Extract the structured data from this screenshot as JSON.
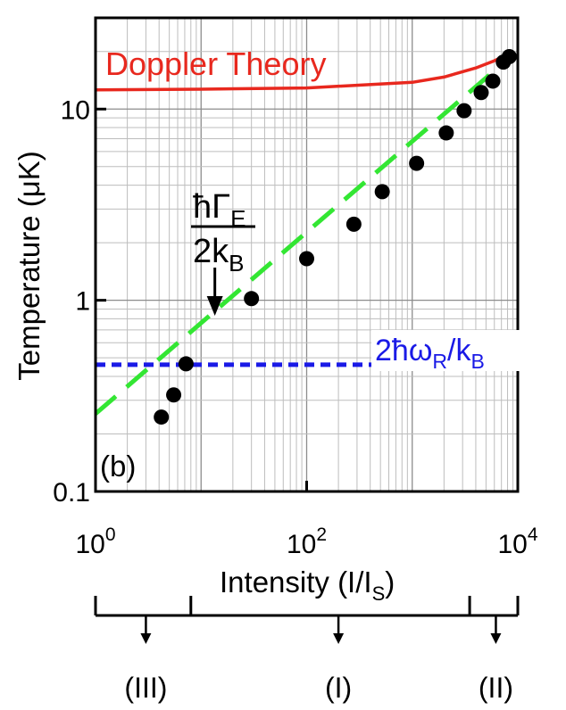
{
  "chart_data": {
    "type": "scatter",
    "title": "",
    "panel_label": "(b)",
    "xlabel": {
      "main": "Intensity (I/I",
      "sub": "S",
      "close": ")"
    },
    "ylabel": "Temperature (μK)",
    "x_scale": "log",
    "y_scale": "log",
    "xlim": [
      1,
      10000
    ],
    "ylim": [
      0.1,
      30
    ],
    "grid": true,
    "x_ticks": [
      {
        "value": 1,
        "base": "10",
        "exp": "0"
      },
      {
        "value": 100,
        "base": "10",
        "exp": "2"
      },
      {
        "value": 10000,
        "base": "10",
        "exp": "4"
      }
    ],
    "y_ticks": [
      {
        "value": 0.1,
        "label": "0.1"
      },
      {
        "value": 1,
        "label": "1"
      },
      {
        "value": 10,
        "label": "10"
      }
    ],
    "colors": {
      "points": "#000000",
      "doppler": "#e8281e",
      "fit": "#33e633",
      "recoil": "#1a1ae6"
    },
    "series": [
      {
        "name": "",
        "x": [
          4.2,
          5.5,
          7.2,
          30,
          100,
          280,
          520,
          1100,
          2100,
          3100,
          4500,
          5800,
          7300,
          8300
        ],
        "y": [
          0.245,
          0.32,
          0.465,
          1.02,
          1.65,
          2.5,
          3.7,
          5.2,
          7.5,
          9.8,
          12.2,
          14,
          17.6,
          18.8
        ]
      }
    ],
    "curves": [
      {
        "name": "Doppler Theory",
        "x": [
          1,
          10,
          100,
          1000,
          2000,
          4000,
          6000,
          8300
        ],
        "y": [
          12.6,
          12.7,
          12.9,
          13.8,
          14.7,
          16.4,
          17.9,
          19.5
        ]
      },
      {
        "name": "",
        "x": [
          1,
          8300
        ],
        "y": [
          0.255,
          18.5
        ]
      },
      {
        "name": "",
        "x": [
          1,
          10000
        ],
        "y": [
          0.46,
          0.46
        ]
      }
    ],
    "annotations": {
      "doppler_label": "Doppler Theory",
      "gamma_numerator": {
        "hbar": "ħ",
        "greek": "Γ",
        "sub": "E"
      },
      "gamma_denominator": {
        "main": "2k",
        "sub": "B"
      },
      "recoil": {
        "lead": "2ħω",
        "sub1": "R",
        "mid": "/k",
        "sub2": "B"
      },
      "arrow_x": 13.5
    },
    "regimes": {
      "boundaries": [
        1,
        8,
        3500,
        10000
      ],
      "markers": [
        {
          "x": 3,
          "label": "(III)"
        },
        {
          "x": 200,
          "label": "(I)"
        },
        {
          "x": 6200,
          "label": "(II)"
        }
      ]
    }
  }
}
